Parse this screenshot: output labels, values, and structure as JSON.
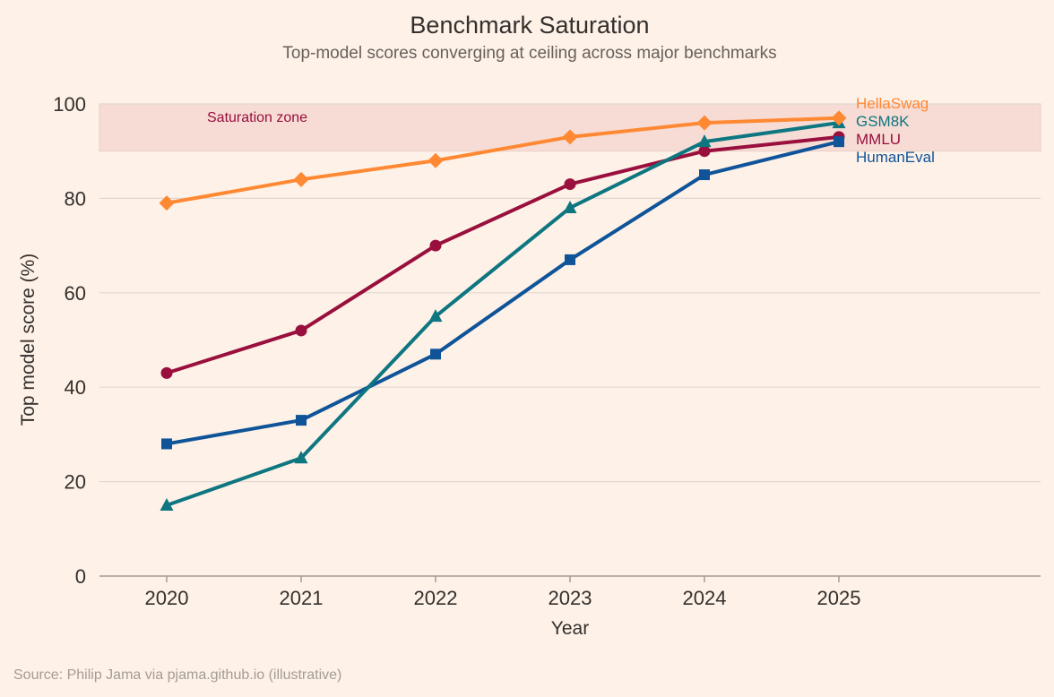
{
  "chart_data": {
    "type": "line",
    "title": "Benchmark Saturation",
    "subtitle": "Top-model scores converging at ceiling across major benchmarks",
    "xlabel": "Year",
    "ylabel": "Top model score (%)",
    "x": [
      2020,
      2021,
      2022,
      2023,
      2024,
      2025
    ],
    "xlim": [
      2019.5,
      2026.5
    ],
    "ylim": [
      0,
      100
    ],
    "yticks": [
      0,
      20,
      40,
      60,
      80,
      100
    ],
    "grid": "horizontal",
    "legend": "direct labels at line ends",
    "band": {
      "label": "Saturation zone",
      "from": 90,
      "to": 100,
      "color": "#f6dcd4"
    },
    "series": [
      {
        "name": "MMLU",
        "color": "#990f3d",
        "marker": "circle",
        "values": [
          43,
          52,
          70,
          83,
          90,
          93
        ]
      },
      {
        "name": "HumanEval",
        "color": "#0f5499",
        "marker": "square",
        "values": [
          28,
          33,
          47,
          67,
          85,
          92
        ]
      },
      {
        "name": "GSM8K",
        "color": "#0d7680",
        "marker": "triangle",
        "values": [
          15,
          25,
          55,
          78,
          92,
          96
        ]
      },
      {
        "name": "HellaSwag",
        "color": "#ff8833",
        "marker": "diamond",
        "values": [
          79,
          84,
          88,
          93,
          96,
          97
        ]
      }
    ],
    "source": "Source: Philip Jama via pjama.github.io (illustrative)"
  }
}
